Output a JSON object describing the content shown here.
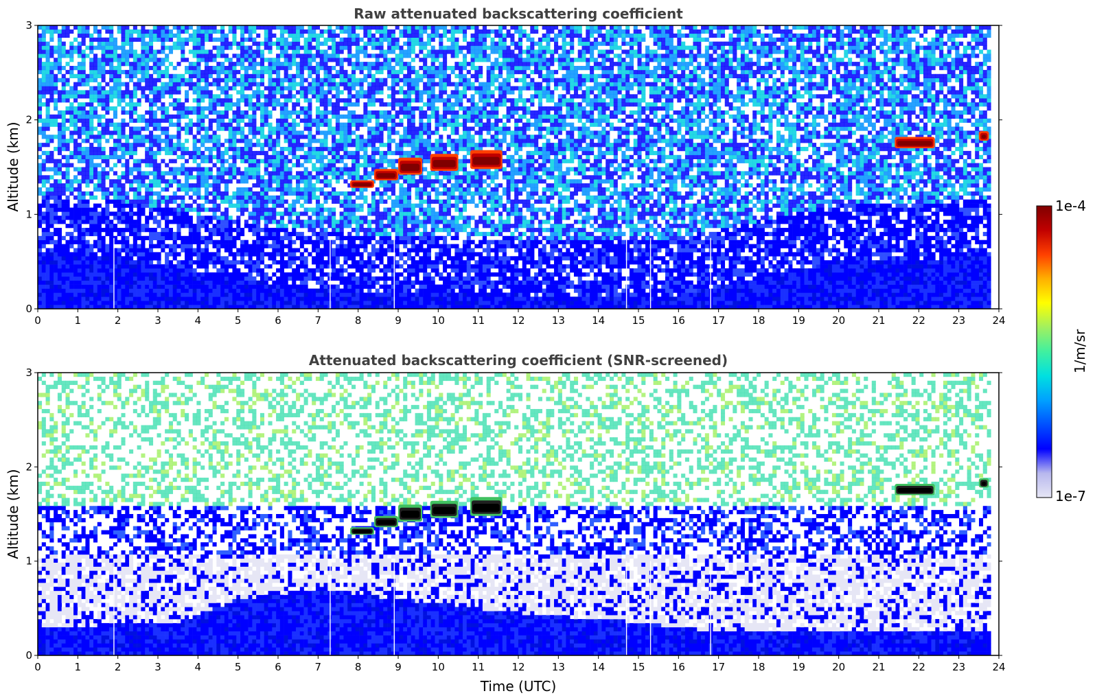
{
  "colors": {
    "background": "#ffffff",
    "title": "#404040",
    "axis": "#000000",
    "colormap": [
      "#e6e6f5",
      "#b8b8ee",
      "#0000ff",
      "#0050ff",
      "#00a0ff",
      "#00e0e0",
      "#40f0a0",
      "#a0f060",
      "#ffff00",
      "#ffb000",
      "#ff4000",
      "#c00000",
      "#800000"
    ]
  },
  "colorbar": {
    "label": "1/m/sr",
    "max_label": "1e-4",
    "min_label": "1e-7",
    "scale": "log"
  },
  "chart_data": [
    {
      "type": "heatmap",
      "title": "Raw attenuated backscattering coefficient",
      "xlabel": "",
      "ylabel": "Altitude (km)",
      "xlim": [
        0,
        24
      ],
      "ylim": [
        0,
        3
      ],
      "xticks": [
        "0",
        "1",
        "2",
        "3",
        "4",
        "5",
        "6",
        "7",
        "8",
        "9",
        "10",
        "11",
        "12",
        "13",
        "14",
        "15",
        "16",
        "17",
        "18",
        "19",
        "20",
        "21",
        "22",
        "23",
        "24"
      ],
      "yticks": [
        "0",
        "1",
        "2",
        "3"
      ],
      "data_end_time": 23.8,
      "boundary_layer_top_km": [
        [
          0,
          0.6
        ],
        [
          2,
          0.55
        ],
        [
          4,
          0.4
        ],
        [
          6,
          0.25
        ],
        [
          8,
          0.18
        ],
        [
          12,
          0.15
        ],
        [
          16,
          0.15
        ],
        [
          20,
          0.5
        ],
        [
          23.8,
          0.55
        ]
      ],
      "cloud_layers": [
        {
          "start": 7.8,
          "end": 8.4,
          "base_km": 1.28,
          "top_km": 1.36
        },
        {
          "start": 8.4,
          "end": 9.0,
          "base_km": 1.36,
          "top_km": 1.48
        },
        {
          "start": 9.0,
          "end": 9.6,
          "base_km": 1.42,
          "top_km": 1.6
        },
        {
          "start": 9.8,
          "end": 10.5,
          "base_km": 1.46,
          "top_km": 1.64
        },
        {
          "start": 10.8,
          "end": 11.6,
          "base_km": 1.48,
          "top_km": 1.68
        },
        {
          "start": 21.4,
          "end": 22.4,
          "base_km": 1.7,
          "top_km": 1.82
        },
        {
          "start": 23.5,
          "end": 23.75,
          "base_km": 1.78,
          "top_km": 1.88
        }
      ],
      "missing_profiles": [
        1.9,
        7.3,
        8.9,
        14.7,
        15.3,
        16.8
      ]
    },
    {
      "type": "heatmap",
      "title": "Attenuated backscattering coefficient (SNR-screened)",
      "xlabel": "Time (UTC)",
      "ylabel": "Altitude (km)",
      "xlim": [
        0,
        24
      ],
      "ylim": [
        0,
        3
      ],
      "xticks": [
        "0",
        "1",
        "2",
        "3",
        "4",
        "5",
        "6",
        "7",
        "8",
        "9",
        "10",
        "11",
        "12",
        "13",
        "14",
        "15",
        "16",
        "17",
        "18",
        "19",
        "20",
        "21",
        "22",
        "23",
        "24"
      ],
      "yticks": [
        "0",
        "1",
        "2",
        "3"
      ],
      "data_end_time": 23.8,
      "boundary_layer_top_km": [
        [
          0,
          0.3
        ],
        [
          3.5,
          0.35
        ],
        [
          5,
          0.6
        ],
        [
          7,
          0.7
        ],
        [
          9,
          0.6
        ],
        [
          12,
          0.45
        ],
        [
          15,
          0.35
        ],
        [
          17,
          0.25
        ],
        [
          23.8,
          0.25
        ]
      ],
      "cloud_layers": [
        {
          "start": 7.8,
          "end": 8.4,
          "base_km": 1.28,
          "top_km": 1.36
        },
        {
          "start": 8.4,
          "end": 9.0,
          "base_km": 1.36,
          "top_km": 1.48
        },
        {
          "start": 9.0,
          "end": 9.6,
          "base_km": 1.42,
          "top_km": 1.6
        },
        {
          "start": 9.8,
          "end": 10.5,
          "base_km": 1.46,
          "top_km": 1.64
        },
        {
          "start": 10.8,
          "end": 11.6,
          "base_km": 1.48,
          "top_km": 1.68
        },
        {
          "start": 21.4,
          "end": 22.4,
          "base_km": 1.7,
          "top_km": 1.82
        },
        {
          "start": 23.5,
          "end": 23.75,
          "base_km": 1.78,
          "top_km": 1.88
        }
      ],
      "missing_profiles": [
        1.9,
        7.3,
        8.9,
        14.7,
        15.3,
        16.8
      ]
    }
  ]
}
